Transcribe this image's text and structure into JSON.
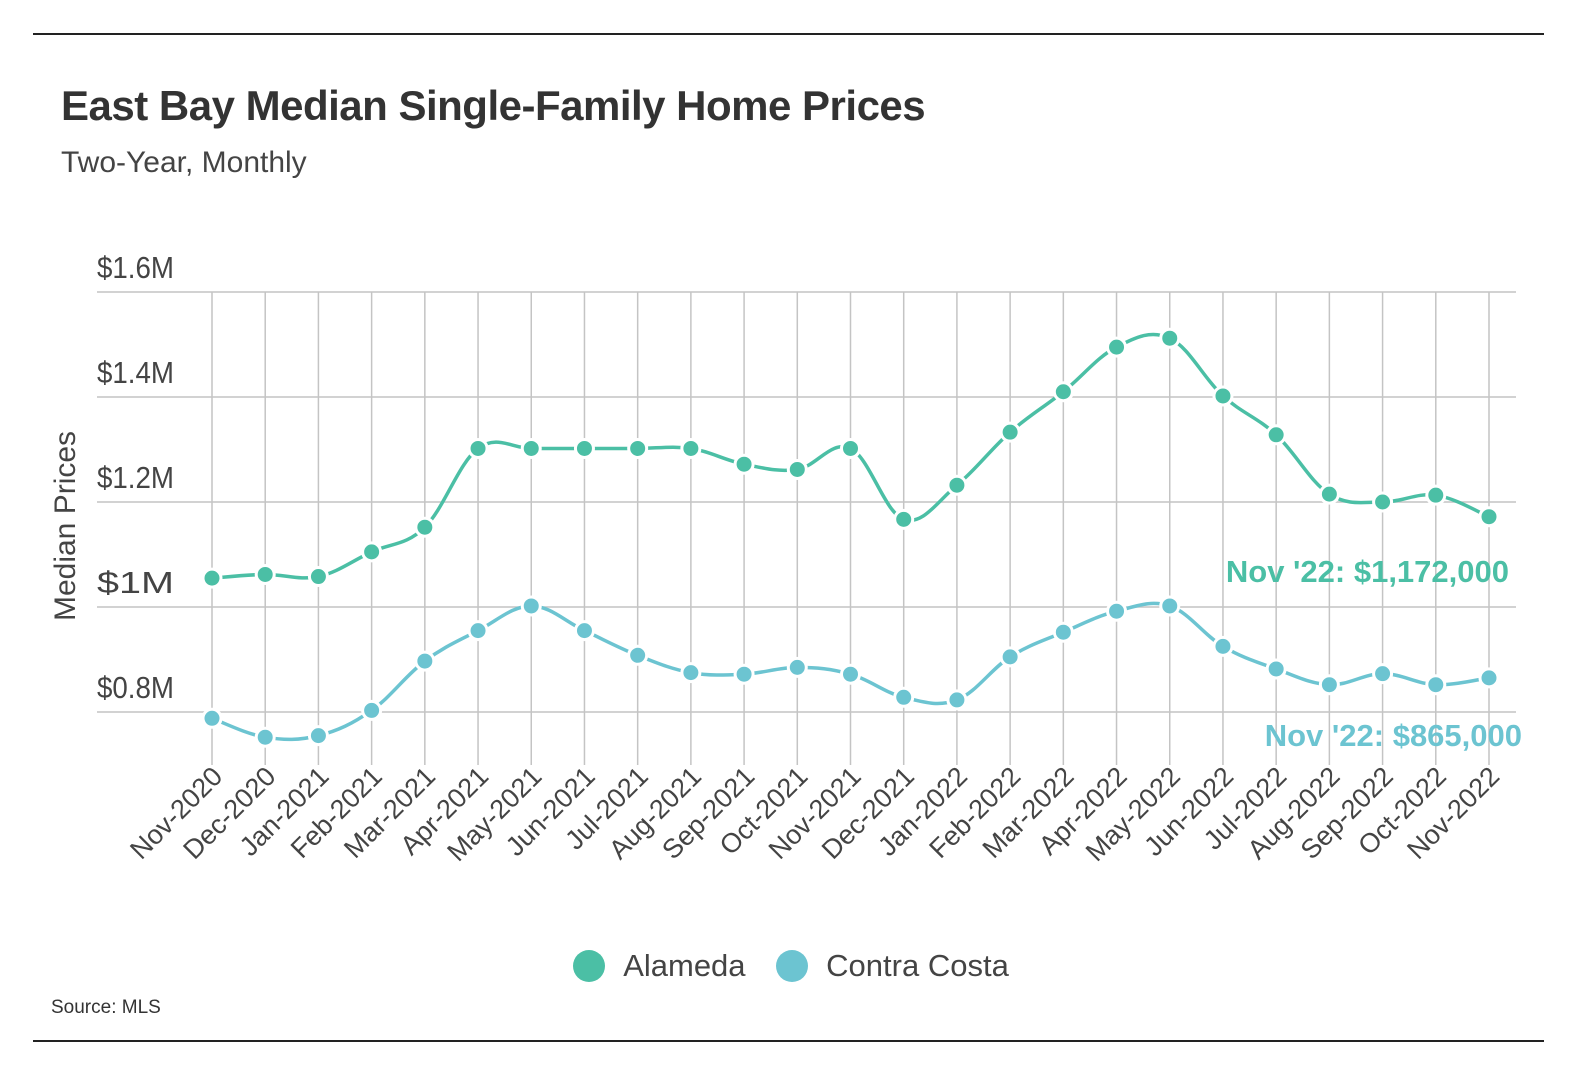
{
  "chart_data": {
    "type": "line",
    "title": "East Bay Median Single-Family Home Prices",
    "subtitle": "Two-Year, Monthly",
    "ylabel": "Median Prices",
    "xlabel": "",
    "ylim": [
      700000,
      1600000
    ],
    "yticks": [
      {
        "value": 800000,
        "label": "$0.8M"
      },
      {
        "value": 1000000,
        "label": "$1M"
      },
      {
        "value": 1200000,
        "label": "$1.2M"
      },
      {
        "value": 1400000,
        "label": "$1.4M"
      },
      {
        "value": 1600000,
        "label": "$1.6M"
      }
    ],
    "categories": [
      "Nov-2020",
      "Dec-2020",
      "Jan-2021",
      "Feb-2021",
      "Mar-2021",
      "Apr-2021",
      "May-2021",
      "Jun-2021",
      "Jul-2021",
      "Aug-2021",
      "Sep-2021",
      "Oct-2021",
      "Nov-2021",
      "Dec-2021",
      "Jan-2022",
      "Feb-2022",
      "Mar-2022",
      "Apr-2022",
      "May-2022",
      "Jun-2022",
      "Jul-2022",
      "Aug-2022",
      "Sep-2022",
      "Oct-2022",
      "Nov-2022"
    ],
    "series": [
      {
        "name": "Alameda",
        "color": "#4bbfa5",
        "values": [
          1055000,
          1062000,
          1058000,
          1105000,
          1152000,
          1302000,
          1302000,
          1302000,
          1302000,
          1302000,
          1272000,
          1262000,
          1302000,
          1167000,
          1232000,
          1333000,
          1410000,
          1495000,
          1512000,
          1402000,
          1328000,
          1215000,
          1200000,
          1213000,
          1172000
        ],
        "annotation": "Nov '22: $1,172,000"
      },
      {
        "name": "Contra Costa",
        "color": "#6cc4d1",
        "values": [
          788000,
          752000,
          755000,
          803000,
          897000,
          955000,
          1002000,
          955000,
          908000,
          875000,
          872000,
          885000,
          872000,
          828000,
          823000,
          905000,
          952000,
          992000,
          1002000,
          925000,
          882000,
          852000,
          873000,
          852000,
          865000
        ],
        "annotation": "Nov '22: $865,000"
      }
    ],
    "grid": true,
    "legend_position": "bottom-center",
    "source": "Source:  MLS"
  }
}
